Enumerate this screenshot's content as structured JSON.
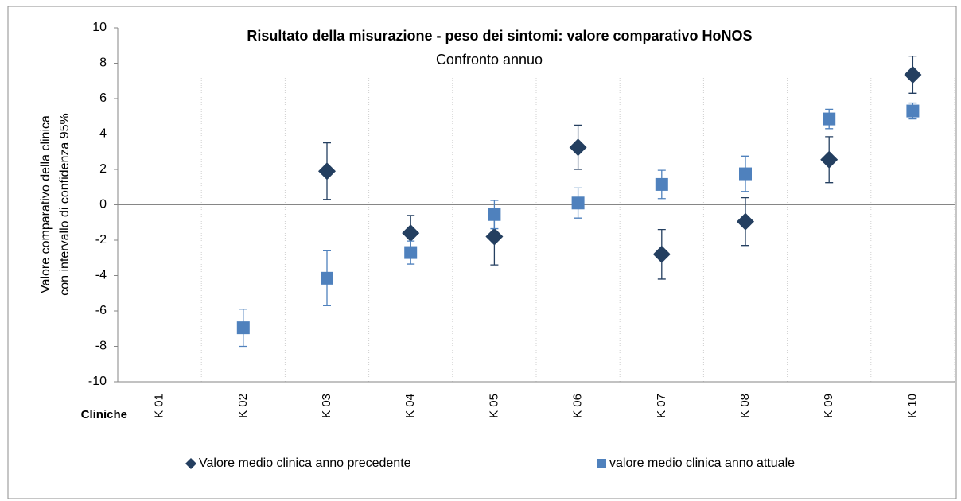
{
  "chart_data": {
    "type": "point",
    "title": "Risultato della misurazione  - peso dei sintomi: valore comparativo  HoNOS",
    "subtitle": "Confronto annuo",
    "y_label": [
      "Valore comparativo della clinica",
      "con intervallo di confidenza  95%"
    ],
    "x_label": "Cliniche",
    "categories": [
      "K 01",
      "K 02",
      "K 03",
      "K 04",
      "K 05",
      "K 06",
      "K 07",
      "K 08",
      "K 09",
      "K 10"
    ],
    "series": [
      {
        "name": "Valore medio clinica anno precedente",
        "color": "#243f60",
        "marker": "diamond",
        "values": [
          null,
          null,
          1.9,
          -1.6,
          -1.8,
          3.25,
          -2.8,
          -0.95,
          2.55,
          7.35
        ],
        "errors": [
          null,
          null,
          1.6,
          1.0,
          1.6,
          1.25,
          1.4,
          1.35,
          1.3,
          1.05
        ]
      },
      {
        "name": "valore medio clinica anno attuale",
        "color": "#4f81bd",
        "marker": "square",
        "values": [
          null,
          -6.95,
          -4.15,
          -2.7,
          -0.55,
          0.1,
          1.15,
          1.75,
          4.85,
          5.3
        ],
        "errors": [
          null,
          1.05,
          1.55,
          0.65,
          0.8,
          0.85,
          0.8,
          1.0,
          0.55,
          0.45
        ]
      }
    ],
    "ylim": [
      -10,
      10
    ],
    "yticks": [
      -10,
      -8,
      -6,
      -4,
      -2,
      0,
      2,
      4,
      6,
      8,
      10
    ],
    "grid": true,
    "legend": "bottom"
  }
}
